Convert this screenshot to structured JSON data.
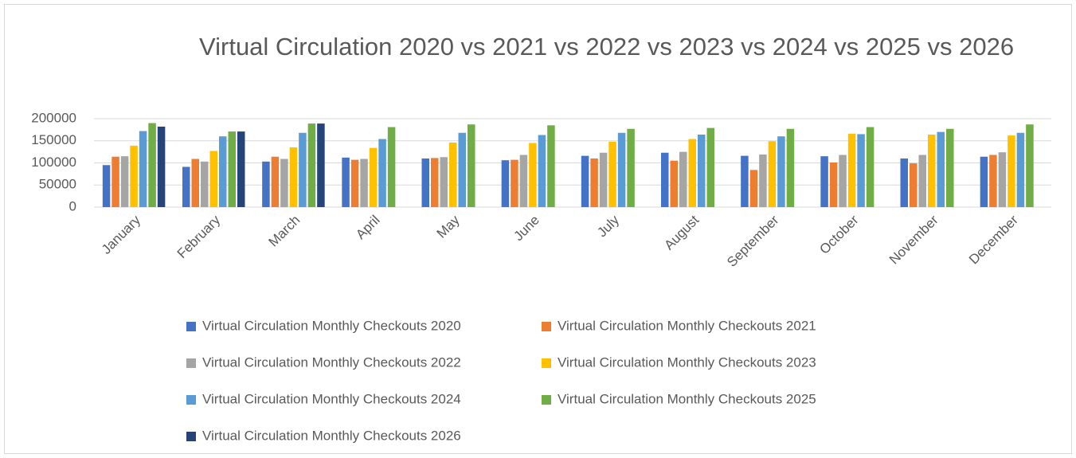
{
  "chart_data": {
    "type": "bar",
    "title": "Virtual Circulation 2020 vs 2021 vs 2022 vs 2023 vs 2024 vs 2025 vs 2026",
    "categories": [
      "January",
      "February",
      "March",
      "April",
      "May",
      "June",
      "July",
      "August",
      "September",
      "October",
      "November",
      "December"
    ],
    "series": [
      {
        "name": "Virtual Circulation Monthly Checkouts 2020",
        "color": "#4472c4",
        "values": [
          95000,
          91000,
          103000,
          112000,
          110000,
          106000,
          116000,
          123000,
          116000,
          115000,
          110000,
          114000
        ]
      },
      {
        "name": "Virtual Circulation Monthly Checkouts 2021",
        "color": "#ed7d31",
        "values": [
          114000,
          109000,
          114000,
          107000,
          111000,
          107000,
          110000,
          105000,
          84000,
          101000,
          99000,
          118000
        ]
      },
      {
        "name": "Virtual Circulation Monthly Checkouts 2022",
        "color": "#a5a5a5",
        "values": [
          115000,
          103000,
          109000,
          109000,
          113000,
          118000,
          123000,
          125000,
          119000,
          118000,
          118000,
          124000
        ]
      },
      {
        "name": "Virtual Circulation Monthly Checkouts 2023",
        "color": "#ffc000",
        "values": [
          139000,
          127000,
          135000,
          134000,
          146000,
          145000,
          148000,
          154000,
          149000,
          166000,
          164000,
          162000
        ]
      },
      {
        "name": "Virtual Circulation Monthly Checkouts 2024",
        "color": "#5b9bd5",
        "values": [
          172000,
          160000,
          168000,
          154000,
          168000,
          163000,
          168000,
          164000,
          160000,
          165000,
          170000,
          168000
        ]
      },
      {
        "name": "Virtual Circulation Monthly Checkouts 2025",
        "color": "#70ad47",
        "values": [
          190000,
          171000,
          189000,
          181000,
          187000,
          185000,
          177000,
          179000,
          177000,
          181000,
          177000,
          187000
        ]
      },
      {
        "name": "Virtual Circulation Monthly Checkouts 2026",
        "color": "#264478",
        "values": [
          182000,
          171000,
          189000,
          null,
          null,
          null,
          null,
          null,
          null,
          null,
          null,
          null
        ]
      }
    ],
    "ylim": [
      0,
      200000
    ],
    "yticks": [
      0,
      50000,
      100000,
      150000,
      200000
    ],
    "grid": true,
    "legend": "bottom"
  }
}
